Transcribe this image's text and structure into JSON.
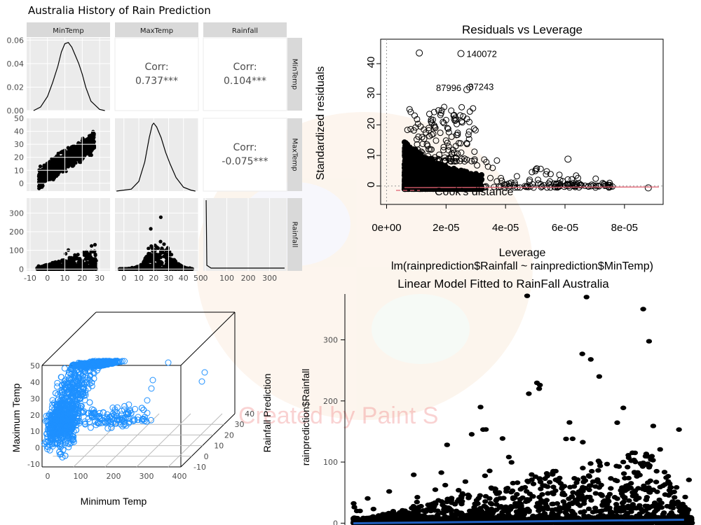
{
  "chart_data": [
    {
      "type": "scatter",
      "subtype": "pairs-matrix",
      "title": "Australia History of Rain Prediction",
      "variables": [
        "MinTemp",
        "MaxTemp",
        "Rainfall"
      ],
      "correlations": [
        {
          "pair": [
            "MinTemp",
            "MaxTemp"
          ],
          "label": "Corr:",
          "value": "0.737***"
        },
        {
          "pair": [
            "MinTemp",
            "Rainfall"
          ],
          "label": "Corr:",
          "value": "0.104***"
        },
        {
          "pair": [
            "MaxTemp",
            "Rainfall"
          ],
          "label": "Corr:",
          "value": "-0.075***"
        }
      ],
      "density_MinTemp": {
        "x": [
          -8,
          -4,
          0,
          3,
          6,
          8,
          10,
          12,
          14,
          16,
          18,
          20,
          22,
          25,
          30,
          33
        ],
        "y": [
          0.0,
          0.003,
          0.012,
          0.024,
          0.038,
          0.05,
          0.057,
          0.058,
          0.054,
          0.047,
          0.04,
          0.031,
          0.02,
          0.008,
          0.001,
          0.0
        ]
      },
      "density_MaxTemp": {
        "x": [
          -5,
          5,
          10,
          14,
          17,
          19,
          20,
          22,
          25,
          28,
          31,
          35,
          40,
          45,
          48
        ],
        "y": [
          0.0,
          0.002,
          0.01,
          0.03,
          0.055,
          0.068,
          0.07,
          0.066,
          0.055,
          0.04,
          0.028,
          0.014,
          0.004,
          0.001,
          0.0
        ]
      },
      "axes": {
        "MinTemp": {
          "ticks": [
            "-10",
            "0",
            "10",
            "20",
            "30"
          ],
          "range": [
            -12,
            36
          ]
        },
        "MaxTemp": {
          "ticks": [
            "0",
            "10",
            "20",
            "30",
            "40",
            "50"
          ],
          "range": [
            -6,
            50
          ]
        },
        "Rainfall": {
          "ticks": [
            "0",
            "100",
            "200",
            "300"
          ],
          "range": [
            -10,
            380
          ]
        },
        "density": {
          "ticks": [
            "0.00",
            "0.02",
            "0.04",
            "0.06"
          ],
          "range": [
            0,
            0.06
          ]
        },
        "maxtemp_row": {
          "ticks": [
            "0",
            "10",
            "20",
            "30",
            "40",
            "50"
          ],
          "range": [
            -6,
            50
          ]
        },
        "rain_row": {
          "ticks": [
            "0",
            "100",
            "200",
            "300"
          ],
          "range": [
            -10,
            380
          ]
        }
      }
    },
    {
      "type": "scatter",
      "title": "Residuals vs Leverage",
      "xlabel": "Leverage",
      "ylabel": "Standardized residuals",
      "subtitle": "lm(rainprediction$Rainfall ~ rainprediction$MinTemp)",
      "legend": "Cook's distance",
      "xticks": [
        "0e+00",
        "2e-05",
        "4e-05",
        "6e-05",
        "8e-05"
      ],
      "xtick_values": [
        0,
        2e-05,
        4e-05,
        6e-05,
        8e-05
      ],
      "yticks": [
        "0",
        "10",
        "20",
        "30",
        "40"
      ],
      "ytick_values": [
        0,
        10,
        20,
        30,
        40
      ],
      "xlim": [
        -2e-06,
        9.3e-05
      ],
      "ylim": [
        -6,
        48
      ],
      "labelled_points": [
        {
          "label": "140072",
          "x": 2.5e-05,
          "y": 43.3
        },
        {
          "label": "87996",
          "x": 2.7e-05,
          "y": 31.5
        },
        {
          "label": "87243",
          "x": 2.8e-05,
          "y": 32.3
        }
      ],
      "outlier_points": [
        {
          "x": 1.1e-05,
          "y": 43.5
        },
        {
          "x": 8.8e-05,
          "y": -0.6
        },
        {
          "x": 6.1e-05,
          "y": 8.8
        }
      ]
    },
    {
      "type": "scatter",
      "subtype": "3d-scatter",
      "xlabel": "Minimum Temp",
      "ylabel": "Rainfall Prediction",
      "zlabel": "Maximum Temp",
      "xticks": [
        "0",
        "100",
        "200",
        "300",
        "400"
      ],
      "yticks": [
        "-10",
        "0",
        "10",
        "20",
        "30",
        "40"
      ],
      "zticks": [
        "-10",
        "0",
        "10",
        "20",
        "30",
        "40",
        "50"
      ],
      "color": "#1e90ff"
    },
    {
      "type": "scatter",
      "title": "Linear Model Fitted to RainFall Australia",
      "ylabel": "rainprediction$Rainfall",
      "yticks": [
        "0",
        "100",
        "200",
        "300"
      ],
      "ytick_values": [
        0,
        100,
        200,
        300
      ],
      "ylim": [
        -3,
        375
      ],
      "xlim": [
        -9,
        33
      ],
      "fit_line": {
        "color": "#1f5fbf",
        "intercept": 0.5,
        "slope": 0.09
      },
      "top_points": [
        {
          "x": 12.5,
          "y": 372
        },
        {
          "x": 19.5,
          "y": 370
        },
        {
          "x": 19.0,
          "y": 277
        },
        {
          "x": 20.0,
          "y": 268
        },
        {
          "x": 21.0,
          "y": 240
        },
        {
          "x": 14.0,
          "y": 226
        },
        {
          "x": 7.0,
          "y": 190
        }
      ]
    }
  ],
  "watermark": "Created by Paint S"
}
